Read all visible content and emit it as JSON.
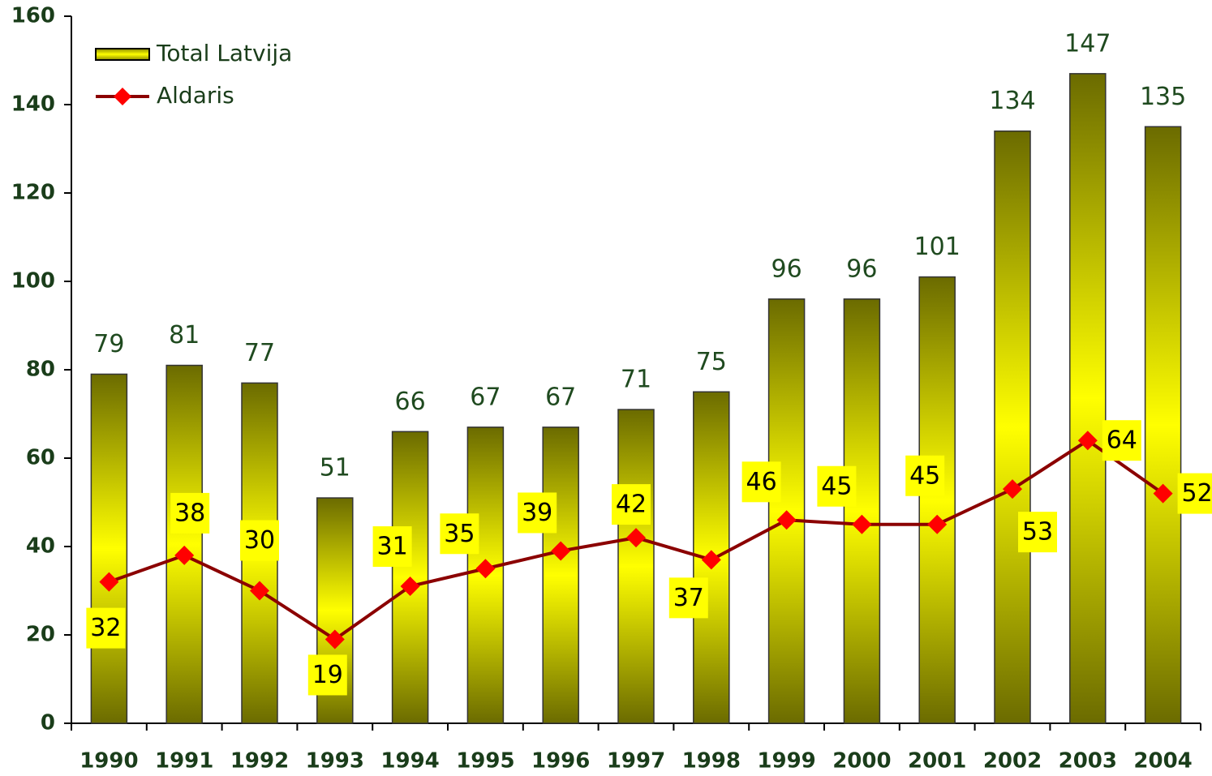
{
  "chart_data": {
    "type": "bar",
    "categories": [
      "1990",
      "1991",
      "1992",
      "1993",
      "1994",
      "1995",
      "1996",
      "1997",
      "1998",
      "1999",
      "2000",
      "2001",
      "2002",
      "2003",
      "2004"
    ],
    "series": [
      {
        "name": "Total Latvija",
        "type": "bar",
        "color": "#ffff00",
        "values": [
          79,
          81,
          77,
          51,
          66,
          67,
          67,
          71,
          75,
          96,
          96,
          101,
          134,
          147,
          135
        ]
      },
      {
        "name": "Aldaris",
        "type": "line",
        "color": "#8b0000",
        "marker_color": "#ff0000",
        "values": [
          32,
          38,
          30,
          19,
          31,
          35,
          39,
          42,
          37,
          46,
          45,
          45,
          53,
          64,
          52
        ]
      }
    ],
    "ylim": [
      0,
      160
    ],
    "yticks": [
      0,
      20,
      40,
      60,
      80,
      100,
      120,
      140,
      160
    ],
    "grid": false,
    "legend": "top-left"
  }
}
